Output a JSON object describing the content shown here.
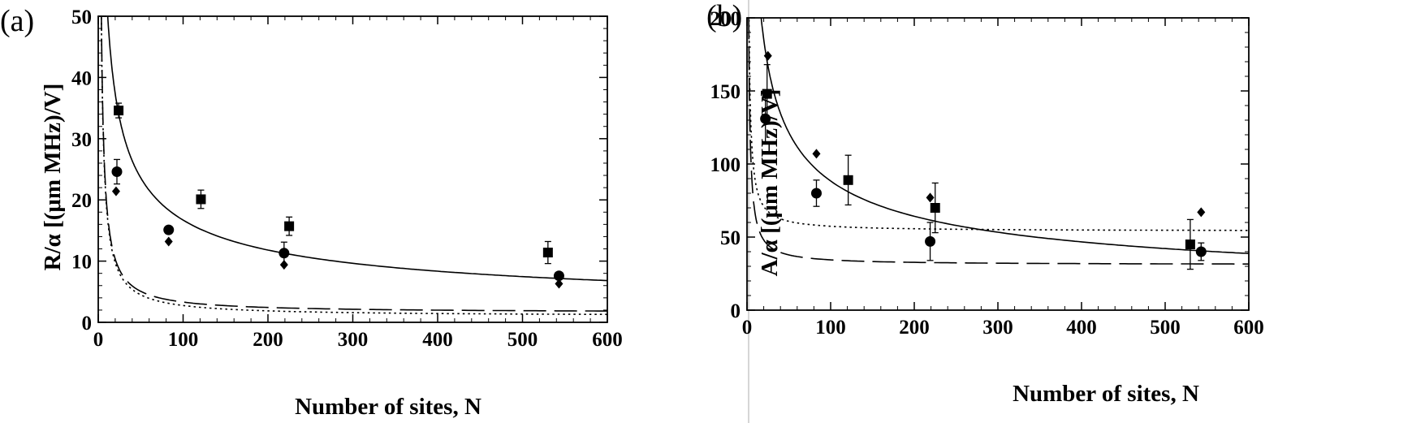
{
  "chart_data": [
    {
      "type": "scatter",
      "panel_label": "(a)",
      "title": "",
      "xlabel": "Number of sites, N",
      "ylabel": "R/α [(μm MHz)/V]",
      "xlim": [
        0,
        600
      ],
      "ylim": [
        0,
        50
      ],
      "xticks": [
        "0",
        "100",
        "200",
        "300",
        "400",
        "500",
        "600"
      ],
      "yticks": [
        "0",
        "10",
        "20",
        "30",
        "40",
        "50"
      ],
      "grid": false,
      "legend": "none",
      "series": [
        {
          "marker": "square",
          "curve_style": "solid",
          "points": [
            {
              "x": 24,
              "y": 34.6,
              "err": 1.2
            },
            {
              "x": 121,
              "y": 20.1,
              "err": 1.5
            },
            {
              "x": 225,
              "y": 15.7,
              "err": 1.5
            },
            {
              "x": 530,
              "y": 11.4,
              "err": 1.8
            }
          ],
          "curve": {
            "c": 167,
            "p": 0.5
          }
        },
        {
          "marker": "circle",
          "curve_style": "dashed",
          "points": [
            {
              "x": 22,
              "y": 24.6,
              "err": 2.0
            },
            {
              "x": 83,
              "y": 15.1,
              "err": 0
            },
            {
              "x": 219,
              "y": 11.3,
              "err": 1.8
            },
            {
              "x": 543,
              "y": 7.6,
              "err": 0
            }
          ],
          "curve": {
            "c": 1.76,
            "p": 1,
            "a": 1.55
          }
        },
        {
          "marker": "diamond",
          "curve_style": "dotted",
          "points": [
            {
              "x": 21,
              "y": 21.4,
              "err": 0
            },
            {
              "x": 83,
              "y": 13.2,
              "err": 0
            },
            {
              "x": 219,
              "y": 9.4,
              "err": 0
            },
            {
              "x": 543,
              "y": 6.3,
              "err": 0
            }
          ],
          "curve": {
            "c": 1.75,
            "p": 1,
            "a": 1.0
          }
        }
      ]
    },
    {
      "type": "scatter",
      "panel_label": "(b)",
      "title": "",
      "xlabel": "Number of sites, N",
      "ylabel": "A/α [(μm MHz)/V]",
      "xlim": [
        0,
        600
      ],
      "ylim": [
        0,
        200
      ],
      "xticks": [
        "0",
        "100",
        "200",
        "300",
        "400",
        "500",
        "600"
      ],
      "yticks": [
        "0",
        "50",
        "100",
        "150",
        "200"
      ],
      "grid": false,
      "legend": "none",
      "series": [
        {
          "marker": "square",
          "curve_style": "solid",
          "points": [
            {
              "x": 24,
              "y": 148,
              "err": 20
            },
            {
              "x": 121,
              "y": 89,
              "err": 17
            },
            {
              "x": 225,
              "y": 70,
              "err": 17
            },
            {
              "x": 530,
              "y": 45,
              "err": 17
            }
          ],
          "curve": {
            "c": 735,
            "p": 0.46
          }
        },
        {
          "marker": "circle",
          "curve_style": "dashed",
          "points": [
            {
              "x": 22,
              "y": 131,
              "err": 17
            },
            {
              "x": 83,
              "y": 80,
              "err": 9
            },
            {
              "x": 219,
              "y": 47,
              "err": 13
            },
            {
              "x": 543,
              "y": 40,
              "err": 6
            }
          ],
          "curve": {
            "c": 3.4,
            "p": 1,
            "a": 31
          }
        },
        {
          "marker": "diamond",
          "curve_style": "dotted",
          "points": [
            {
              "x": 25,
              "y": 174,
              "err": 0
            },
            {
              "x": 83,
              "y": 107,
              "err": 0
            },
            {
              "x": 219,
              "y": 77,
              "err": 0
            },
            {
              "x": 543,
              "y": 67,
              "err": 0
            }
          ],
          "curve": {
            "c": 3.4,
            "p": 1,
            "a": 54
          }
        }
      ]
    }
  ]
}
